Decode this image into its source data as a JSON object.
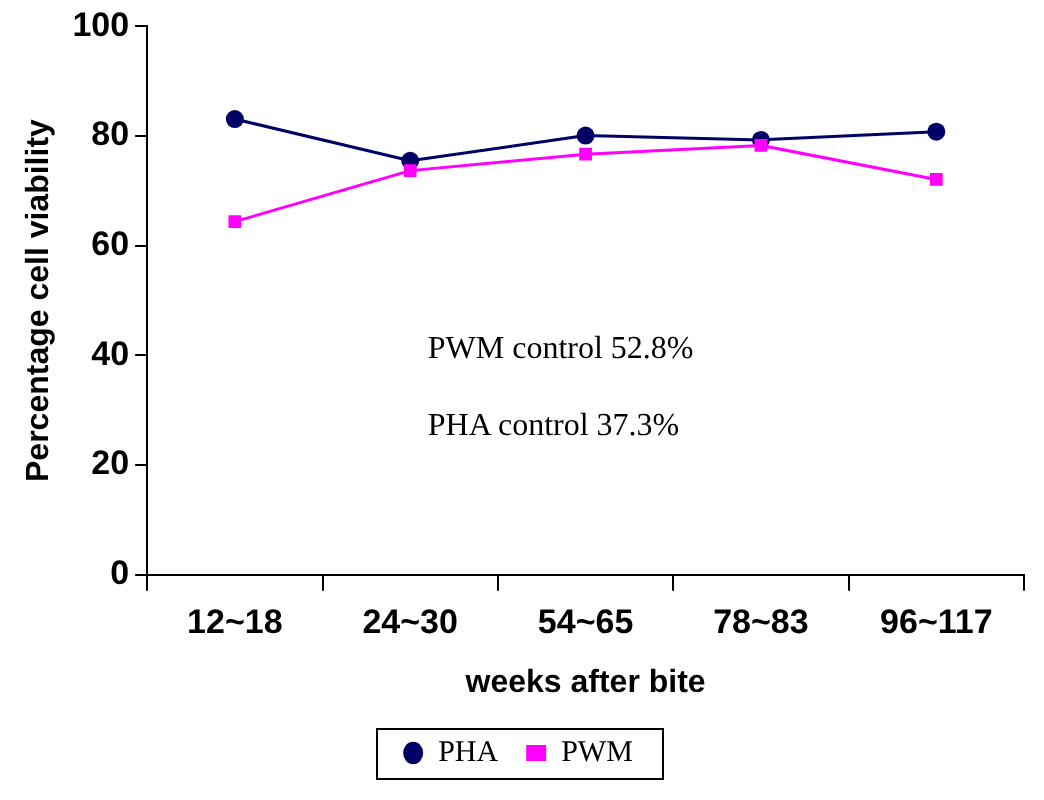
{
  "chart_data": {
    "type": "line",
    "xlabel": "weeks after bite",
    "ylabel": "Percentage cell viability",
    "categories": [
      "12~18",
      "24~30",
      "54~65",
      "78~83",
      "96~117"
    ],
    "series": [
      {
        "name": "PHA",
        "color": "#000066",
        "marker": "circle",
        "values": [
          83.1,
          75.5,
          80.1,
          79.3,
          80.8
        ]
      },
      {
        "name": "PWM",
        "color": "#ff00ff",
        "marker": "square",
        "values": [
          64.4,
          73.7,
          76.7,
          78.3,
          72.1
        ]
      }
    ],
    "ylim": [
      0,
      100
    ],
    "yticks": [
      0,
      20,
      40,
      60,
      80,
      100
    ],
    "grid": false,
    "legend": "bottom",
    "annotations": [
      "PWM control 52.8%",
      "PHA control 37.3%"
    ]
  }
}
